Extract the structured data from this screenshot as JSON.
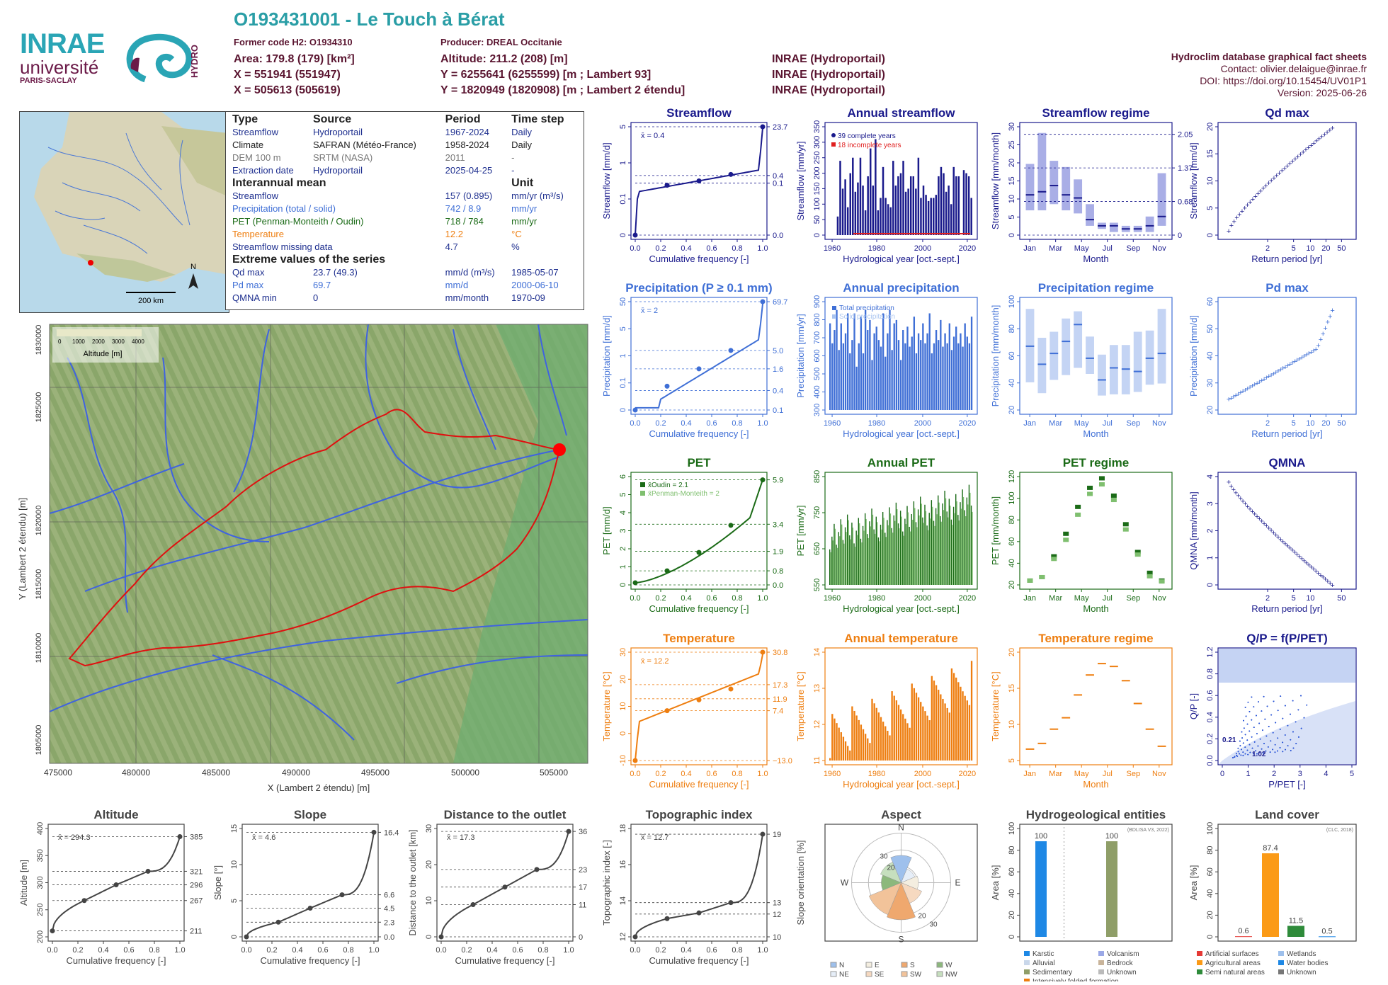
{
  "header": {
    "station_title": "O193431001 - Le Touch à Bérat",
    "former_code": "Former code H2: O1934310",
    "producer": "Producer: DREAL Occitanie",
    "area": "Area: 179.8 (179) [km²]",
    "altitude": "Altitude: 211.2 (208) [m]",
    "x_l93": "X = 551941 (551947)",
    "y_l93": "Y = 6255641 (6255599) [m ; Lambert 93]",
    "x_l2e": "X = 505613 (505619)",
    "y_l2e": "Y = 1820949 (1820908) [m ; Lambert 2 étendu]",
    "src1": "INRAE (Hydroportail)",
    "src2": "INRAE (Hydroportail)",
    "src3": "INRAE (Hydroportail)",
    "db_title": "Hydroclim database graphical fact sheets",
    "contact": "Contact: olivier.delaigue@inrae.fr",
    "doi": "DOI: https://doi.org/10.15454/UV01P1",
    "version": "Version: 2025-06-26",
    "logo_inrae": "INRAE",
    "logo_univ": "université",
    "logo_paris": "PARIS-SACLAY",
    "logo_hydro": "HYDRO"
  },
  "info_table": {
    "head": [
      "Type",
      "Source",
      "Period",
      "Time step"
    ],
    "rows": [
      [
        "Streamflow",
        "Hydroportail",
        "1967-2024",
        "Daily"
      ],
      [
        "Climate",
        "SAFRAN (Météo-France)",
        "1958-2024",
        "Daily"
      ],
      [
        "DEM 100 m",
        "SRTM (NASA)",
        "2011",
        "-"
      ],
      [
        "Extraction date",
        "Hydroportail",
        "2025-04-25",
        "-"
      ]
    ],
    "interannual_title": "Interannual mean",
    "unit_title": "Unit",
    "interannual": [
      [
        "Streamflow",
        "157 (0.895)",
        "mm/yr (m³/s)"
      ],
      [
        "Precipitation (total / solid)",
        "742 / 8.9",
        "mm/yr"
      ],
      [
        "PET (Penman-Monteith / Oudin)",
        "718 / 784",
        "mm/yr"
      ],
      [
        "Temperature",
        "12.2",
        "°C"
      ],
      [
        "Streamflow missing data",
        "4.7",
        "%"
      ]
    ],
    "extreme_title": "Extreme values of the series",
    "extremes": [
      [
        "Qd max",
        "23.7 (49.3)",
        "mm/d (m³/s)",
        "1985-05-07"
      ],
      [
        "Pd max",
        "69.7",
        "mm/d",
        "2000-06-10"
      ],
      [
        "QMNA min",
        "0",
        "mm/month",
        "1970-09"
      ]
    ]
  },
  "inset_map": {
    "scale": "200 km",
    "north": "N"
  },
  "main_map": {
    "xlabel": "X (Lambert 2 étendu) [m]",
    "ylabel": "Y (Lambert 2 étendu) [m]",
    "xticks": [
      "475000",
      "480000",
      "485000",
      "490000",
      "495000",
      "500000",
      "505000"
    ],
    "yticks": [
      "1805000",
      "1810000",
      "1815000",
      "1820000",
      "1825000",
      "1830000"
    ],
    "legend_title": "Altitude [m]",
    "legend_ticks": [
      "0",
      "1000",
      "2000",
      "3000",
      "4000"
    ]
  },
  "chart_data": [
    {
      "id": "streamflow_cdf",
      "type": "line",
      "title": "Streamflow",
      "xlabel": "Cumulative frequency [-]",
      "ylabel": "Streamflow [mm/d]",
      "mean_label": "x̄ = 0.4",
      "right_ticks": [
        "23.7",
        "0.4",
        "0.1",
        "0.0"
      ],
      "x": [
        0,
        0.01,
        0.05,
        0.25,
        0.5,
        0.75,
        0.95,
        0.99,
        1
      ],
      "y": [
        0.0,
        0.02,
        0.08,
        0.12,
        0.2,
        0.35,
        1.2,
        4,
        23.7
      ],
      "color": "#1a1a8c"
    },
    {
      "id": "annual_streamflow",
      "type": "bar",
      "title": "Annual streamflow",
      "xlabel": "Hydrological year [oct.-sept.]",
      "ylabel": "Streamflow [mm/yr]",
      "ylim": [
        0,
        350
      ],
      "legend": [
        "39 complete years",
        "18 incomplete years"
      ],
      "x_start": 1967,
      "x_end": 2023,
      "values": [
        0,
        0,
        0,
        60,
        240,
        150,
        180,
        90,
        200,
        250,
        140,
        170,
        250,
        160,
        80,
        190,
        280,
        160,
        310,
        80,
        120,
        220,
        120,
        100,
        90,
        240,
        160,
        190,
        200,
        240,
        140,
        150,
        190,
        190,
        150,
        250,
        120,
        160,
        130,
        110,
        120,
        120,
        130,
        190,
        220,
        200,
        140,
        160,
        100,
        220,
        190,
        190,
        0,
        210,
        200,
        190,
        120
      ],
      "color": "#1a1a8c"
    },
    {
      "id": "streamflow_regime",
      "type": "bar",
      "title": "Streamflow regime",
      "xlabel": "Month",
      "ylabel": "Streamflow [mm/month]",
      "categories": [
        "Jan",
        "Feb",
        "Mar",
        "Apr",
        "May",
        "Jun",
        "Jul",
        "Aug",
        "Sep",
        "Oct",
        "Nov",
        "Dec"
      ],
      "median": [
        13,
        14,
        16,
        13,
        12,
        5,
        3,
        3,
        2,
        2,
        3,
        6
      ],
      "q_low": [
        8,
        8,
        10,
        8,
        7,
        3,
        2,
        1,
        1,
        1,
        1,
        3
      ],
      "q_high": [
        23,
        33,
        24,
        22,
        18,
        10,
        4,
        4,
        3,
        3,
        6,
        20
      ],
      "right_ticks": [
        "2.05",
        "1.37",
        "0.68",
        "0"
      ],
      "color": "#4b57c8"
    },
    {
      "id": "qd_max",
      "type": "scatter",
      "title": "Qd max",
      "xlabel": "Return period [yr]",
      "ylabel": "Streamflow [mm/d]",
      "xticks": [
        "2",
        "5",
        "10",
        "20",
        "50"
      ]
    },
    {
      "id": "precip_cdf",
      "type": "line",
      "title": "Precipitation (P ≥ 0.1 mm)",
      "xlabel": "Cumulative frequency [-]",
      "ylabel": "Precipitation [mm/d]",
      "mean_label": "x̄ = 2",
      "right_ticks": [
        "69.7",
        "5.0",
        "1.6",
        "0.4",
        "0.1"
      ],
      "color": "#3f6fd6"
    },
    {
      "id": "annual_precip",
      "type": "bar",
      "title": "Annual precipitation",
      "xlabel": "Hydrological year [oct.-sept.]",
      "ylabel": "Precipitation [mm/yr]",
      "legend": [
        "Total precipitation",
        "Solid precipitation"
      ],
      "x_start": 1959,
      "x_end": 2023,
      "values": [
        820,
        700,
        780,
        900,
        660,
        820,
        700,
        760,
        880,
        640,
        720,
        880,
        560,
        700,
        860,
        640,
        900,
        780,
        840,
        600,
        760,
        800,
        720,
        680,
        880,
        620,
        760,
        900,
        660,
        820,
        840,
        720,
        600,
        780,
        700,
        800,
        680,
        740,
        860,
        640,
        760,
        720,
        820,
        700,
        760,
        880,
        640,
        700,
        780,
        720,
        840,
        680,
        760,
        700,
        820,
        660,
        740,
        800,
        700,
        760,
        680,
        820,
        740,
        700,
        860
      ],
      "color": "#3f6fd6"
    },
    {
      "id": "precip_regime",
      "type": "bar",
      "title": "Precipitation regime",
      "xlabel": "Month",
      "ylabel": "Precipitation [mm/month]",
      "categories": [
        "Jan",
        "Feb",
        "Mar",
        "Apr",
        "May",
        "Jun",
        "Jul",
        "Aug",
        "Sep",
        "Oct",
        "Nov",
        "Dec"
      ],
      "median": [
        68,
        53,
        62,
        72,
        86,
        58,
        40,
        50,
        49,
        47,
        58,
        62
      ],
      "q_low": [
        38,
        29,
        40,
        44,
        50,
        45,
        27,
        28,
        28,
        30,
        36,
        37
      ],
      "q_high": [
        99,
        75,
        80,
        91,
        97,
        76,
        61,
        69,
        69,
        80,
        81,
        99
      ],
      "color": "#3f6fd6"
    },
    {
      "id": "pd_max",
      "type": "scatter",
      "title": "Pd max",
      "xlabel": "Return period [yr]",
      "ylabel": "Precipitation [mm/d]",
      "xticks": [
        "2",
        "5",
        "10",
        "20",
        "50"
      ]
    },
    {
      "id": "pet_cdf",
      "type": "line",
      "title": "PET",
      "xlabel": "Cumulative frequency [-]",
      "ylabel": "PET [mm/d]",
      "legend": [
        "x̄Oudin = 2.1",
        "x̄Penman-Monteith = 2"
      ],
      "right_ticks": [
        "5.9",
        "3.4",
        "1.9",
        "0.8",
        "0.0"
      ],
      "color": "#1b6b17"
    },
    {
      "id": "annual_pet",
      "type": "bar",
      "title": "Annual PET",
      "xlabel": "Hydrological year [oct.-sept.]",
      "ylabel": "PET [mm/yr]",
      "ylim": [
        550,
        870
      ],
      "x_start": 1959,
      "x_end": 2023,
      "color": "#1b6b17"
    },
    {
      "id": "pet_regime",
      "type": "bar",
      "title": "PET regime",
      "xlabel": "Month",
      "ylabel": "PET [mm/month]",
      "categories": [
        "Jan",
        "Feb",
        "Mar",
        "Apr",
        "May",
        "Jun",
        "Jul",
        "Aug",
        "Sep",
        "Oct",
        "Nov",
        "Dec"
      ],
      "oudin": [
        15,
        19,
        43,
        69,
        100,
        122,
        133,
        113,
        80,
        48,
        24,
        15
      ],
      "pm": [
        15,
        19,
        40,
        62,
        91,
        115,
        126,
        108,
        74,
        45,
        20,
        14
      ],
      "color": "#1b6b17"
    },
    {
      "id": "qmna",
      "type": "scatter",
      "title": "QMNA",
      "xlabel": "Return period [yr]",
      "ylabel": "QMNA [mm/month]",
      "xticks": [
        "2",
        "5",
        "10",
        "50"
      ]
    },
    {
      "id": "temp_cdf",
      "type": "line",
      "title": "Temperature",
      "xlabel": "Cumulative frequency [-]",
      "ylabel": "Temperature [°C]",
      "mean_label": "x̄ = 12.2",
      "right_ticks": [
        "30.8",
        "17.3",
        "11.9",
        "7.4",
        "−13.0"
      ],
      "color": "#ee7e10"
    },
    {
      "id": "annual_temp",
      "type": "bar",
      "title": "Annual temperature",
      "xlabel": "Hydrological year [oct.-sept.]",
      "ylabel": "Temperature [°C]",
      "ylim": [
        10.6,
        14.2
      ],
      "x_start": 1959,
      "x_end": 2023,
      "color": "#ee7e10"
    },
    {
      "id": "temp_regime",
      "type": "bar",
      "title": "Temperature regime",
      "xlabel": "Month",
      "ylabel": "Temperature [°C]",
      "categories": [
        "Jan",
        "Feb",
        "Mar",
        "Apr",
        "May",
        "Jun",
        "Jul",
        "Aug",
        "Sep",
        "Oct",
        "Nov",
        "Dec"
      ],
      "median": [
        5,
        6,
        8.5,
        10.5,
        14.5,
        18,
        20,
        19.5,
        17,
        13,
        8.5,
        5.5
      ],
      "color": "#ee7e10"
    },
    {
      "id": "qp_pet",
      "type": "scatter",
      "title": "Q/P = f(P/PET)",
      "xlabel": "P/PET [-]",
      "ylabel": "Q/P [-]",
      "labels": [
        "0.21",
        "1.02"
      ]
    },
    {
      "id": "altitude_cdf",
      "type": "line",
      "title": "Altitude",
      "xlabel": "Cumulative frequency [-]",
      "ylabel": "Altitude [m]",
      "mean_label": "x̄ = 294.3",
      "right_ticks": [
        "385",
        "321",
        "296",
        "267",
        "211"
      ],
      "ylim": [
        200,
        400
      ],
      "x": [
        0,
        0.25,
        0.5,
        0.75,
        1
      ],
      "y": [
        211,
        267,
        296,
        321,
        385
      ]
    },
    {
      "id": "slope_cdf",
      "type": "line",
      "title": "Slope",
      "xlabel": "Cumulative frequency [-]",
      "ylabel": "Slope [°]",
      "mean_label": "x̄ = 4.6",
      "right_ticks": [
        "16.4",
        "6.6",
        "4.5",
        "2.3",
        "0.0"
      ],
      "ylim": [
        0,
        17
      ],
      "x": [
        0,
        0.25,
        0.5,
        0.75,
        1
      ],
      "y": [
        0,
        2.3,
        4.5,
        6.6,
        16.4
      ]
    },
    {
      "id": "distance_cdf",
      "type": "line",
      "title": "Distance to the outlet",
      "xlabel": "Cumulative frequency [-]",
      "ylabel": "Distance to the outlet [km]",
      "mean_label": "x̄ = 17.3",
      "right_ticks": [
        "36",
        "23",
        "17",
        "11",
        "0"
      ],
      "ylim": [
        0,
        37
      ],
      "x": [
        0,
        0.25,
        0.5,
        0.75,
        1
      ],
      "y": [
        0,
        11,
        17,
        23,
        36
      ]
    },
    {
      "id": "topo_cdf",
      "type": "line",
      "title": "Topographic index",
      "xlabel": "Cumulative frequency [-]",
      "ylabel": "Topographic index [-]",
      "mean_label": "x̄ = 12.7",
      "right_ticks": [
        "19",
        "13",
        "12",
        "10"
      ],
      "ylim": [
        10,
        19.5
      ],
      "x": [
        0,
        0.25,
        0.5,
        0.75,
        1
      ],
      "y": [
        10,
        11.6,
        12.1,
        13,
        19
      ]
    },
    {
      "id": "aspect",
      "type": "pie",
      "title": "Aspect",
      "ylabel": "Slope orientation [%]",
      "labels": [
        "N",
        "E",
        "S",
        "W"
      ],
      "rings": [
        "10",
        "20",
        "30"
      ],
      "legend": [
        "N",
        "E",
        "S",
        "W",
        "NE",
        "SE",
        "SW",
        "NW"
      ]
    },
    {
      "id": "hydrogeo",
      "type": "bar",
      "title": "Hydrogeological entities",
      "ylabel": "Area [%]",
      "note": "(BDLISA V3, 2022)",
      "values": [
        100,
        100
      ],
      "value_labels": [
        "100",
        "100"
      ],
      "legend": [
        "Karstic",
        "Volcanism",
        "Alluvial",
        "Bedrock",
        "Sedimentary",
        "Unknown",
        "Intensively folded formation"
      ]
    },
    {
      "id": "landcover",
      "type": "bar",
      "title": "Land cover",
      "ylabel": "Area [%]",
      "note": "(CLC, 2018)",
      "values": [
        0.6,
        87.4,
        11.5,
        0.5
      ],
      "value_labels": [
        "0.6",
        "87.4",
        "11.5",
        "0.5"
      ],
      "legend": [
        "Artificial surfaces",
        "Wetlands",
        "Agricultural areas",
        "Water bodies",
        "Semi natural areas",
        "Unknown"
      ]
    }
  ],
  "axis_text": {
    "cdf_x": [
      "0.0",
      "0.2",
      "0.4",
      "0.6",
      "0.8",
      "1.0"
    ],
    "years": [
      "1960",
      "1980",
      "2000",
      "2020"
    ],
    "months": [
      "Jan",
      "Mar",
      "May",
      "Jul",
      "Sep",
      "Nov"
    ],
    "qd_y": [
      "0",
      "5",
      "10",
      "15",
      "20"
    ],
    "pd_y": [
      "20",
      "30",
      "40",
      "50",
      "60"
    ],
    "qmna_y": [
      "0",
      "1",
      "2",
      "3",
      "4"
    ],
    "qp_y": [
      "0.0",
      "0.2",
      "0.4",
      "0.6",
      "0.8",
      "1.2"
    ],
    "qp_x": [
      "0",
      "1",
      "2",
      "3",
      "4",
      "5"
    ],
    "sf_year_y": [
      "0",
      "50",
      "100",
      "150",
      "200",
      "250",
      "300",
      "350"
    ],
    "sf_reg_y": [
      "0",
      "5",
      "10",
      "15",
      "20",
      "25",
      "30"
    ],
    "pr_year_y": [
      "300",
      "400",
      "500",
      "600",
      "700",
      "800",
      "900"
    ],
    "pr_reg_y": [
      "20",
      "40",
      "60",
      "80",
      "100"
    ],
    "pet_year_y": [
      "550",
      "650",
      "750",
      "850"
    ],
    "pet_reg_y": [
      "20",
      "40",
      "60",
      "80",
      "100",
      "120"
    ],
    "tmp_year_y": [
      "11",
      "12",
      "13",
      "14"
    ],
    "tmp_reg_y": [
      "5",
      "10",
      "15",
      "20"
    ],
    "sf_cdf_y": [
      "0",
      "0.1",
      "1",
      "5"
    ],
    "pr_cdf_y": [
      "0",
      "0.1",
      "1",
      "5",
      "50"
    ],
    "pet_cdf_y": [
      "0",
      "1",
      "2",
      "3",
      "4",
      "5",
      "6"
    ],
    "tmp_cdf_y": [
      "-10",
      "0",
      "10",
      "20",
      "30"
    ],
    "alt_y": [
      "200",
      "250",
      "300",
      "350",
      "400"
    ],
    "slope_y": [
      "0",
      "5",
      "10",
      "15"
    ],
    "dist_y": [
      "0",
      "10",
      "20",
      "30"
    ],
    "topo_y": [
      "12",
      "14",
      "16",
      "18"
    ],
    "area_y": [
      "0",
      "20",
      "40",
      "60",
      "80",
      "100"
    ]
  }
}
